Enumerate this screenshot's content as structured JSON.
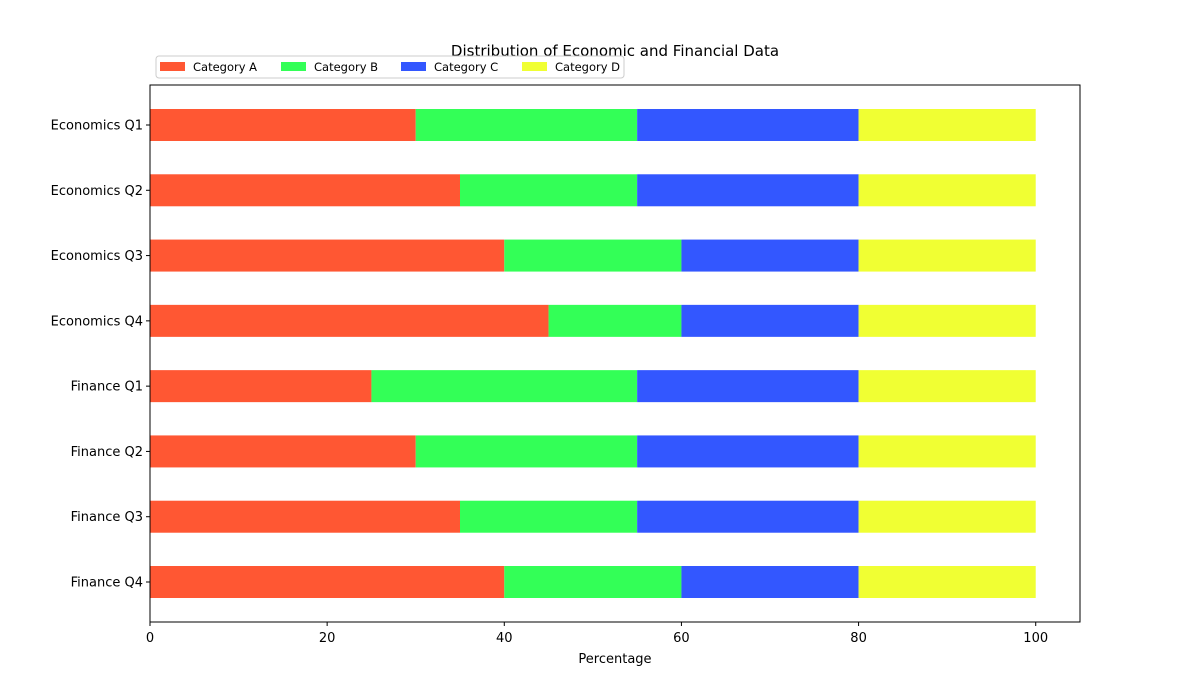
{
  "chart_data": {
    "type": "bar",
    "orientation": "horizontal",
    "stacked": true,
    "title": "Distribution of Economic and Financial Data",
    "xlabel": "Percentage",
    "ylabel": "",
    "xlim": [
      0,
      105
    ],
    "xticks": [
      0,
      20,
      40,
      60,
      80,
      100
    ],
    "grid": false,
    "legend_placement": "top-left",
    "categories": [
      "Economics Q1",
      "Economics Q2",
      "Economics Q3",
      "Economics Q4",
      "Finance Q1",
      "Finance Q2",
      "Finance Q3",
      "Finance Q4"
    ],
    "series": [
      {
        "name": "Category A",
        "color": "#ff5733",
        "values": [
          30,
          35,
          40,
          45,
          25,
          30,
          35,
          40
        ]
      },
      {
        "name": "Category B",
        "color": "#33ff57",
        "values": [
          25,
          20,
          20,
          15,
          30,
          25,
          20,
          20
        ]
      },
      {
        "name": "Category C",
        "color": "#3357ff",
        "values": [
          25,
          25,
          20,
          20,
          25,
          25,
          25,
          20
        ]
      },
      {
        "name": "Category D",
        "color": "#f0ff33",
        "values": [
          20,
          20,
          20,
          20,
          20,
          20,
          20,
          20
        ]
      }
    ]
  }
}
